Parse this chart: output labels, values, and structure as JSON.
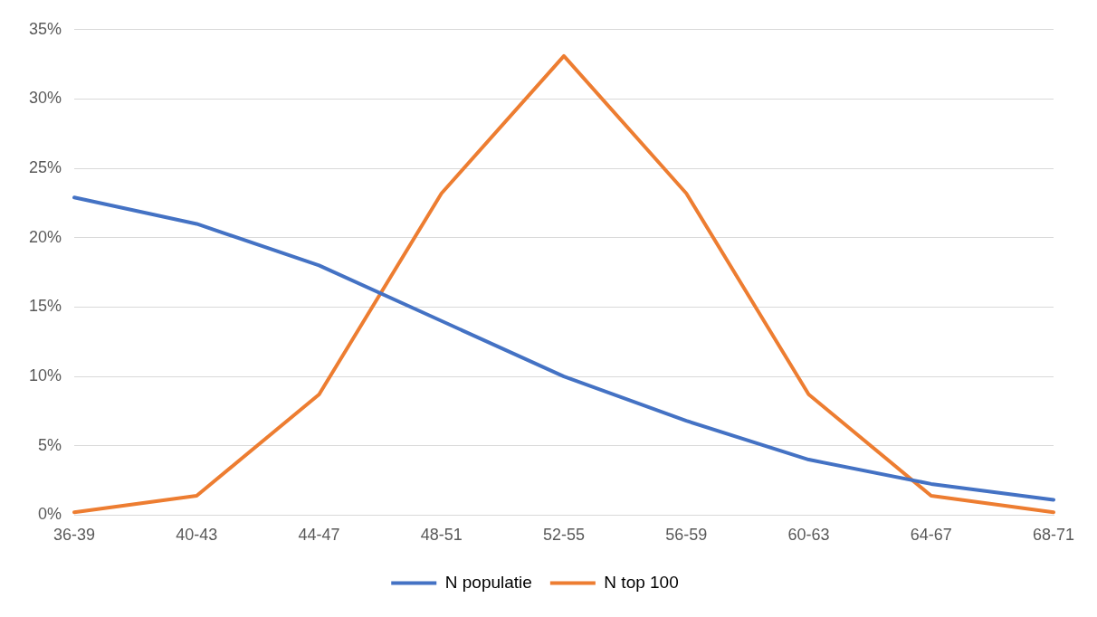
{
  "chart_data": {
    "type": "line",
    "categories": [
      "36-39",
      "40-43",
      "44-47",
      "48-51",
      "52-55",
      "56-59",
      "60-63",
      "64-67",
      "68-71"
    ],
    "series": [
      {
        "name": "N populatie",
        "color": "#4472c4",
        "values": [
          22.9,
          21.0,
          18.0,
          14.0,
          10.0,
          6.8,
          4.0,
          2.25,
          1.1
        ]
      },
      {
        "name": "N top 100",
        "color": "#ed7d31",
        "values": [
          0.2,
          1.4,
          8.7,
          23.2,
          33.1,
          23.2,
          8.7,
          1.4,
          0.2
        ]
      }
    ],
    "ylim": [
      0,
      35
    ],
    "yticks": [
      {
        "value": 0,
        "label": "0%"
      },
      {
        "value": 5,
        "label": "5%"
      },
      {
        "value": 10,
        "label": "10%"
      },
      {
        "value": 15,
        "label": "15%"
      },
      {
        "value": 20,
        "label": "20%"
      },
      {
        "value": 25,
        "label": "25%"
      },
      {
        "value": 30,
        "label": "30%"
      },
      {
        "value": 35,
        "label": "35%"
      }
    ],
    "grid": "y",
    "legend": "bottom",
    "marker": "none",
    "line_style": "solid"
  }
}
